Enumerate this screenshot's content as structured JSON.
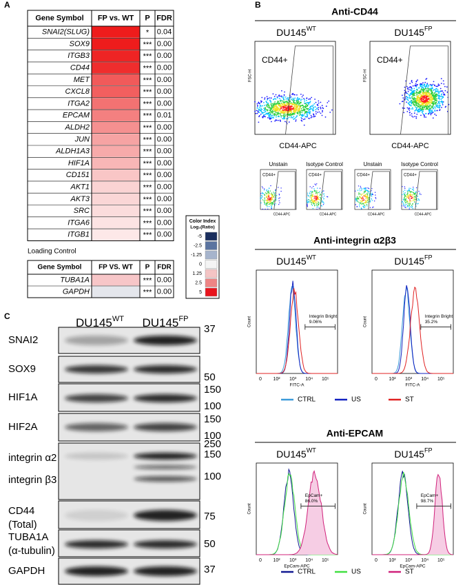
{
  "panel_a": {
    "label": "A",
    "headers": [
      "Gene Symbol",
      "FP vs. WT",
      "P",
      "FDR"
    ],
    "rows": [
      {
        "gene": "SNAI2(SLUG)",
        "p": "*",
        "fdr": "0.04",
        "color": "#ee1c1c"
      },
      {
        "gene": "SOX9",
        "p": "***",
        "fdr": "0.00",
        "color": "#ee1c1c"
      },
      {
        "gene": "ITGB3",
        "p": "***",
        "fdr": "0.00",
        "color": "#ee2424"
      },
      {
        "gene": "CD44",
        "p": "***",
        "fdr": "0.00",
        "color": "#ef2d2d"
      },
      {
        "gene": "MET",
        "p": "***",
        "fdr": "0.00",
        "color": "#f15a5a"
      },
      {
        "gene": "CXCL8",
        "p": "***",
        "fdr": "0.00",
        "color": "#f25f5f"
      },
      {
        "gene": "ITGA2",
        "p": "***",
        "fdr": "0.00",
        "color": "#f37272"
      },
      {
        "gene": "EPCAM",
        "p": "***",
        "fdr": "0.01",
        "color": "#f48080"
      },
      {
        "gene": "ALDH2",
        "p": "***",
        "fdr": "0.00",
        "color": "#f59090"
      },
      {
        "gene": "JUN",
        "p": "***",
        "fdr": "0.00",
        "color": "#f6a3a3"
      },
      {
        "gene": "ALDH1A3",
        "p": "***",
        "fdr": "0.00",
        "color": "#f7aaaa"
      },
      {
        "gene": "HIF1A",
        "p": "***",
        "fdr": "0.00",
        "color": "#f8b6b6"
      },
      {
        "gene": "CD151",
        "p": "***",
        "fdr": "0.00",
        "color": "#f9c6c6"
      },
      {
        "gene": "AKT1",
        "p": "***",
        "fdr": "0.00",
        "color": "#fad3d3"
      },
      {
        "gene": "AKT3",
        "p": "***",
        "fdr": "0.00",
        "color": "#fad6d6"
      },
      {
        "gene": "SRC",
        "p": "***",
        "fdr": "0.00",
        "color": "#fbdcdc"
      },
      {
        "gene": "ITGA6",
        "p": "***",
        "fdr": "0.00",
        "color": "#fce3e3"
      },
      {
        "gene": "ITGB1",
        "p": "***",
        "fdr": "0.00",
        "color": "#fde8e8"
      }
    ],
    "loading_control": {
      "title": "Loading Control",
      "headers": [
        "Gene Symbol",
        "FP VS. WT",
        "P",
        "FDR"
      ],
      "rows": [
        {
          "gene": "TUBA1A",
          "p": "***",
          "fdr": "0.00",
          "color": "#f7c6c8"
        },
        {
          "gene": "GAPDH",
          "p": "***",
          "fdr": "0.00",
          "color": "#e4e6ec"
        }
      ]
    },
    "color_index": {
      "title": "Color Index",
      "subtitle": "Log₂(Ratio)",
      "items": [
        {
          "label": "-5",
          "color": "#1b2f5e"
        },
        {
          "label": "-2.5",
          "color": "#5b74a0"
        },
        {
          "label": "-1.25",
          "color": "#a6b4cc"
        },
        {
          "label": "0",
          "color": "#f4f4f4"
        },
        {
          "label": "1.25",
          "color": "#f4c4c4"
        },
        {
          "label": "2.5",
          "color": "#ee8585"
        },
        {
          "label": "5",
          "color": "#e8141c"
        }
      ]
    }
  },
  "panel_b": {
    "label": "B",
    "cd44": {
      "title": "Anti-CD44",
      "samples": [
        {
          "name": "DU145",
          "sup": "WT"
        },
        {
          "name": "DU145",
          "sup": "FP"
        }
      ],
      "gate_label": "CD44+",
      "y_axis": "FSC-H",
      "x_axis": "CD44-APC",
      "controls": [
        {
          "title": "Unstain",
          "gate": "CD44+"
        },
        {
          "title": "Isotype Control",
          "gate": "CD44+"
        },
        {
          "title": "Unstain",
          "gate": "CD44+"
        },
        {
          "title": "Isotype Control",
          "gate": "CD44+"
        }
      ]
    },
    "integrin": {
      "title": "Anti-integrin α2β3",
      "samples": [
        {
          "name": "DU145",
          "sup": "WT"
        },
        {
          "name": "DU145",
          "sup": "FP"
        }
      ],
      "gates": [
        {
          "name": "Integrin Bright",
          "percent": "9.06%"
        },
        {
          "name": "Integrin Bright",
          "percent": "35.2%"
        }
      ],
      "y_axis": "Count",
      "x_axis": "FITC-A",
      "ticks": [
        "0",
        "10²",
        "10³",
        "10⁴",
        "10⁵"
      ],
      "legend": [
        {
          "name": "CTRL",
          "color": "#3a9ad9"
        },
        {
          "name": "US",
          "color": "#1020c0"
        },
        {
          "name": "ST",
          "color": "#e02020"
        }
      ]
    },
    "epcam": {
      "title": "Anti-EPCAM",
      "samples": [
        {
          "name": "DU145",
          "sup": "WT"
        },
        {
          "name": "DU145",
          "sup": "FP"
        }
      ],
      "gates": [
        {
          "name": "EpCam+",
          "percent": "86.0%"
        },
        {
          "name": "EpCam+",
          "percent": "98.7%"
        }
      ],
      "y_axis": "Count",
      "x_axis": "EpCam-APC",
      "ticks": [
        "0",
        "10²",
        "10³",
        "10⁴",
        "10⁵"
      ],
      "legend": [
        {
          "name": "CTRL",
          "color": "#101890"
        },
        {
          "name": "US",
          "color": "#40e040"
        },
        {
          "name": "ST",
          "color": "#d0207a"
        }
      ]
    }
  },
  "panel_c": {
    "label": "C",
    "columns": [
      {
        "name": "DU145",
        "sup": "WT"
      },
      {
        "name": "DU145",
        "sup": "FP"
      }
    ],
    "blots": [
      {
        "labels": [
          "SNAI2"
        ],
        "markers": [
          "37"
        ]
      },
      {
        "labels": [
          "SOX9"
        ],
        "markers": [
          "50"
        ]
      },
      {
        "labels": [
          "HIF1A"
        ],
        "markers": [
          "150",
          "100"
        ]
      },
      {
        "labels": [
          "HIF2A"
        ],
        "markers": [
          "150",
          "100"
        ]
      },
      {
        "labels": [
          "integrin α2",
          "integrin β3"
        ],
        "markers": [
          "250",
          "150",
          "100"
        ]
      },
      {
        "labels": [
          "CD44",
          "(Total)"
        ],
        "markers": [
          "75"
        ]
      },
      {
        "labels": [
          "TUBA1A",
          "(α-tubulin)"
        ],
        "markers": [
          "50"
        ]
      },
      {
        "labels": [
          "GAPDH"
        ],
        "markers": [
          "37"
        ]
      }
    ]
  }
}
